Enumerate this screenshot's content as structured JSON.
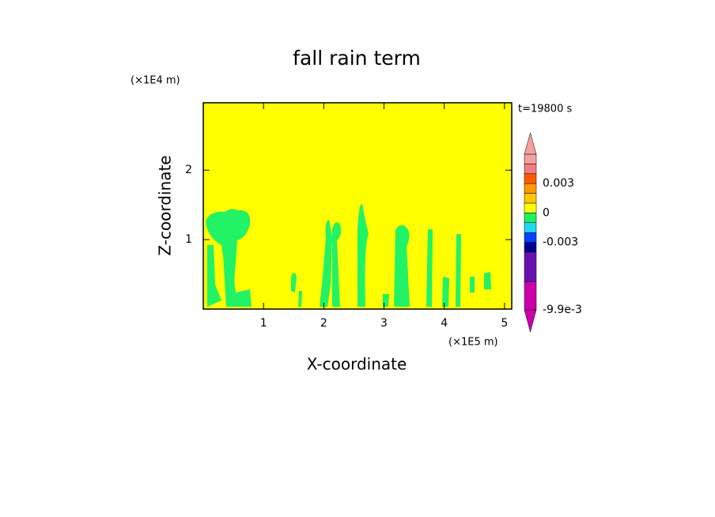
{
  "chart_data": {
    "type": "contour",
    "title": "fall rain term",
    "xlabel": "X-coordinate",
    "ylabel": "Z-coordinate",
    "x_unit": "(×1E5 m)",
    "y_unit": "(×1E4 m)",
    "time_label": "t=19800 s",
    "xlim": [
      0,
      5.12
    ],
    "ylim": [
      0,
      2.97
    ],
    "xticks": [
      1,
      2,
      3,
      4,
      5
    ],
    "yticks": [
      1,
      2
    ],
    "colorbar": {
      "levels": [
        -0.0099,
        -0.007,
        -0.004,
        -0.003,
        -0.002,
        -0.001,
        0,
        0.001,
        0.002,
        0.003,
        0.004,
        0.005,
        0.006
      ],
      "colors": [
        "#cc00aa",
        "#6a10b0",
        "#000090",
        "#0040ff",
        "#20d8f0",
        "#20f060",
        "#ffff00",
        "#ffc800",
        "#ff9a00",
        "#ff5a00",
        "#f08080",
        "#f4a0a0"
      ],
      "ticks": [
        0.003,
        0,
        -0.003,
        {
          "value": -0.0099,
          "label": "-9.9e-3"
        }
      ]
    }
  }
}
